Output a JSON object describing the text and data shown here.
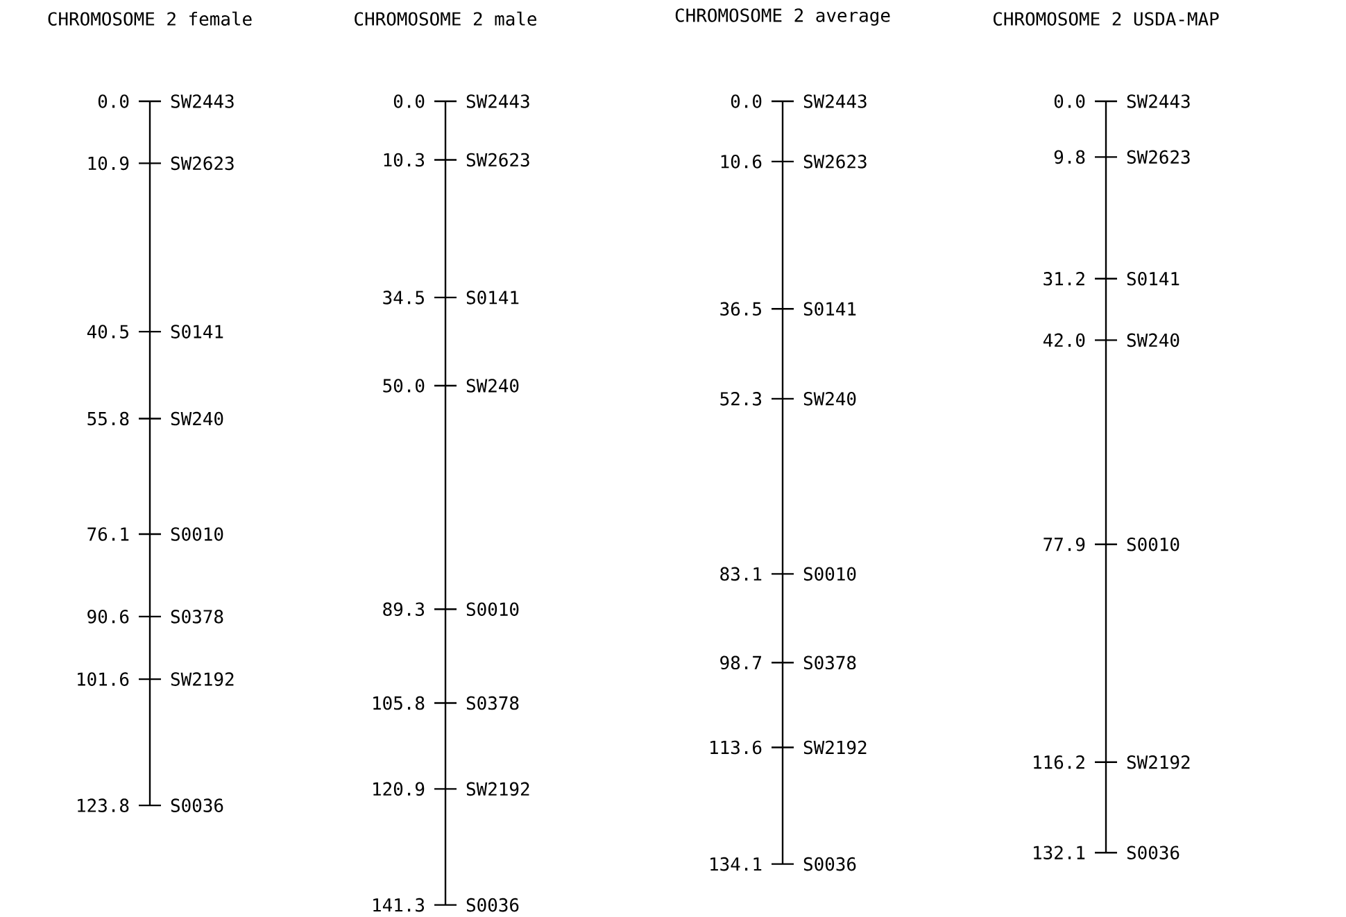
{
  "chart_data": [
    {
      "type": "other",
      "title": "CHROMOSOME 2 female",
      "categories": [
        "SW2443",
        "SW2623",
        "S0141",
        "SW240",
        "S0010",
        "S0378",
        "SW2192",
        "S0036"
      ],
      "values": [
        0.0,
        10.9,
        40.5,
        55.8,
        76.1,
        90.6,
        101.6,
        123.8
      ],
      "value_labels": [
        "0.0",
        "10.9",
        "40.5",
        "55.8",
        "76.1",
        "90.6",
        "101.6",
        "123.8"
      ]
    },
    {
      "type": "other",
      "title": "CHROMOSOME 2 male",
      "categories": [
        "SW2443",
        "SW2623",
        "S0141",
        "SW240",
        "S0010",
        "S0378",
        "SW2192",
        "S0036"
      ],
      "values": [
        0.0,
        10.3,
        34.5,
        50.0,
        89.3,
        105.8,
        120.9,
        141.3
      ],
      "value_labels": [
        "0.0",
        "10.3",
        "34.5",
        "50.0",
        "89.3",
        "105.8",
        "120.9",
        "141.3"
      ]
    },
    {
      "type": "other",
      "title": "CHROMOSOME 2 average",
      "categories": [
        "SW2443",
        "SW2623",
        "S0141",
        "SW240",
        "S0010",
        "S0378",
        "SW2192",
        "S0036"
      ],
      "values": [
        0.0,
        10.6,
        36.5,
        52.3,
        83.1,
        98.7,
        113.6,
        134.1
      ],
      "value_labels": [
        "0.0",
        "10.6",
        "36.5",
        "52.3",
        "83.1",
        "98.7",
        "113.6",
        "134.1"
      ]
    },
    {
      "type": "other",
      "title": "CHROMOSOME 2 USDA-MAP",
      "categories": [
        "SW2443",
        "SW2623",
        "S0141",
        "SW240",
        "S0010",
        "SW2192",
        "S0036"
      ],
      "values": [
        0.0,
        9.8,
        31.2,
        42.0,
        77.9,
        116.2,
        132.1
      ],
      "value_labels": [
        "0.0",
        "9.8",
        "31.2",
        "42.0",
        "77.9",
        "116.2",
        "132.1"
      ]
    }
  ]
}
